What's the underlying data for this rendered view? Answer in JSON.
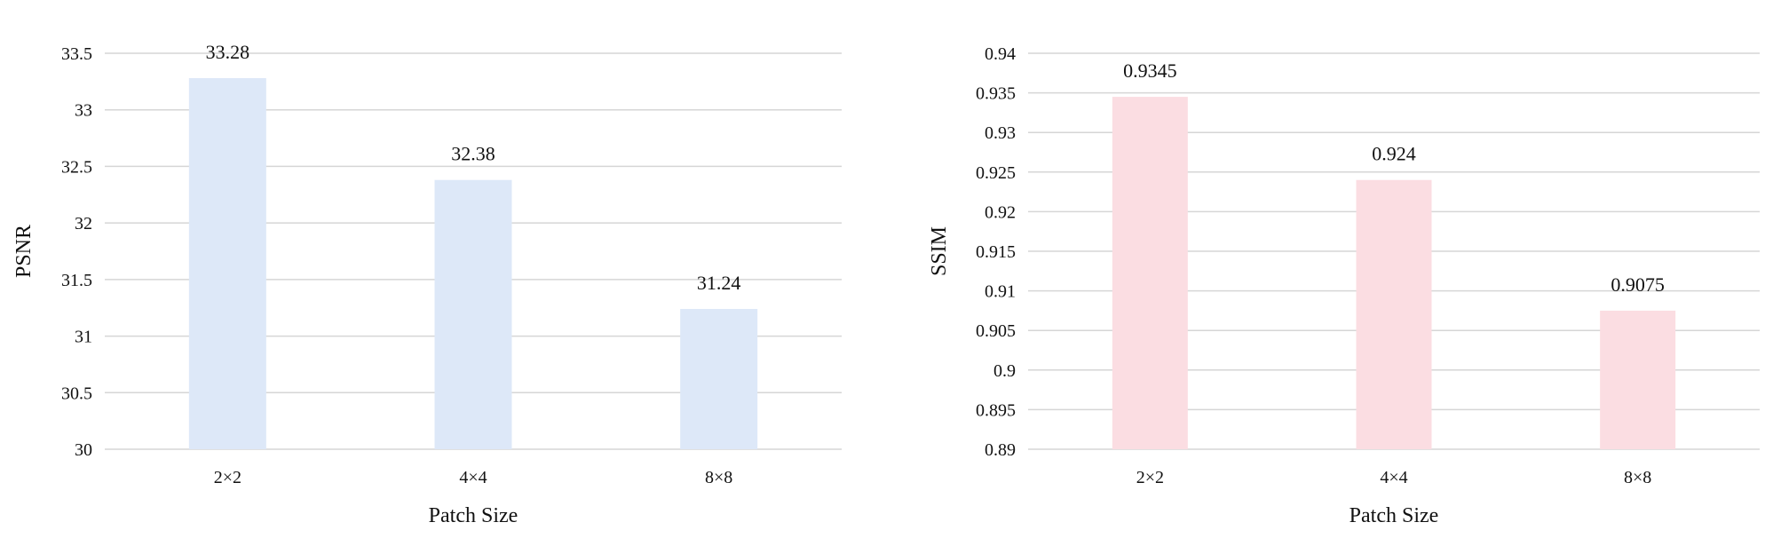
{
  "chart_data": [
    {
      "type": "bar",
      "title": "",
      "xlabel": "Patch Size",
      "ylabel": "PSNR",
      "categories": [
        "2×2",
        "4×4",
        "8×8"
      ],
      "values": [
        33.28,
        32.38,
        31.24
      ],
      "value_labels": [
        "33.28",
        "32.38",
        "31.24"
      ],
      "ylim": [
        30,
        33.5
      ],
      "yticks": [
        30,
        30.5,
        31,
        31.5,
        32,
        32.5,
        33,
        33.5
      ],
      "ytick_labels": [
        "30",
        "30.5",
        "31",
        "31.5",
        "32",
        "32.5",
        "33",
        "33.5"
      ],
      "grid": true,
      "legend": "none",
      "bar_color": "#dde8f8",
      "grid_color": "#d6d6d6"
    },
    {
      "type": "bar",
      "title": "",
      "xlabel": "Patch Size",
      "ylabel": "SSIM",
      "categories": [
        "2×2",
        "4×4",
        "8×8"
      ],
      "values": [
        0.9345,
        0.924,
        0.9075
      ],
      "value_labels": [
        "0.9345",
        "0.924",
        "0.9075"
      ],
      "ylim": [
        0.89,
        0.94
      ],
      "yticks": [
        0.89,
        0.895,
        0.9,
        0.905,
        0.91,
        0.915,
        0.92,
        0.925,
        0.93,
        0.935,
        0.94
      ],
      "ytick_labels": [
        "0.89",
        "0.895",
        "0.9",
        "0.905",
        "0.91",
        "0.915",
        "0.92",
        "0.925",
        "0.93",
        "0.935",
        "0.94"
      ],
      "grid": true,
      "legend": "none",
      "bar_color": "#fbdde2",
      "grid_color": "#d6d6d6"
    }
  ]
}
